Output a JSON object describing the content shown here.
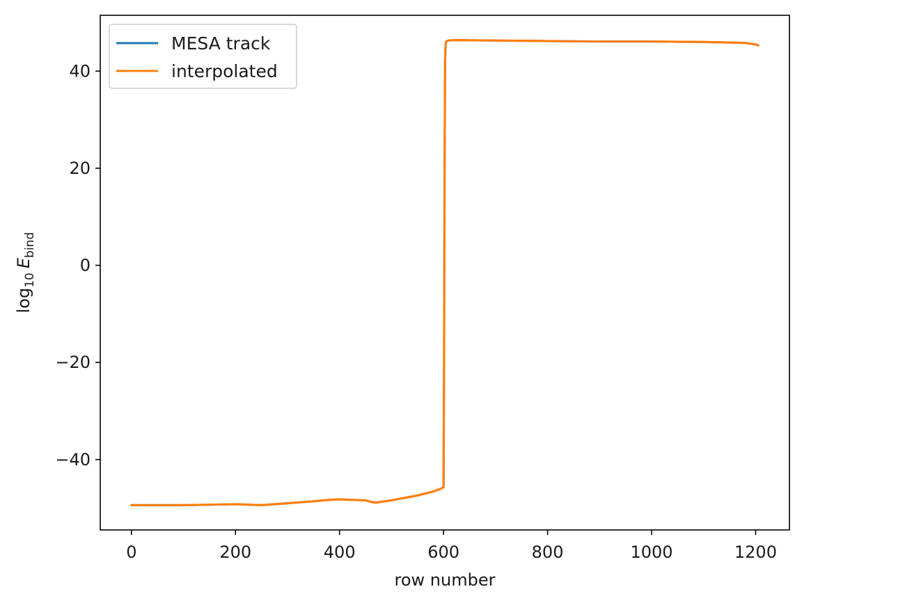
{
  "chart_data": {
    "type": "line",
    "title": "",
    "xlabel": "row number",
    "ylabel": {
      "prefix": "log",
      "prefix_sub": "10",
      "var": "E",
      "var_sub": "bind"
    },
    "xlim": [
      -60,
      1265
    ],
    "ylim": [
      -54.5,
      51.5
    ],
    "xticks": [
      0,
      200,
      400,
      600,
      800,
      1000,
      1200
    ],
    "yticks": [
      -40,
      -20,
      0,
      20,
      40
    ],
    "xtick_labels": [
      "0",
      "200",
      "400",
      "600",
      "800",
      "1000",
      "1200"
    ],
    "ytick_labels": [
      "−40",
      "−20",
      "0",
      "20",
      "40"
    ],
    "grid": false,
    "legend_position": "upper-left",
    "series": [
      {
        "name": "MESA track",
        "color": "#1f77b4",
        "x": [
          0,
          50,
          100,
          150,
          200,
          250,
          300,
          350,
          380,
          400,
          420,
          450,
          460,
          470,
          480,
          500,
          520,
          550,
          580,
          595,
          600,
          601,
          602,
          603,
          604,
          606,
          610,
          620,
          700,
          800,
          900,
          1000,
          1100,
          1150,
          1180,
          1200,
          1205
        ],
        "y": [
          -49.4,
          -49.4,
          -49.4,
          -49.3,
          -49.2,
          -49.4,
          -49.0,
          -48.6,
          -48.3,
          -48.2,
          -48.3,
          -48.4,
          -48.7,
          -48.9,
          -48.7,
          -48.4,
          -48.0,
          -47.4,
          -46.6,
          -46.0,
          -45.7,
          -20.0,
          20.0,
          42.0,
          45.8,
          46.2,
          46.3,
          46.4,
          46.3,
          46.2,
          46.1,
          46.1,
          46.0,
          45.9,
          45.8,
          45.5,
          45.3
        ]
      },
      {
        "name": "interpolated",
        "color": "#ff7f0e",
        "x": [
          0,
          50,
          100,
          150,
          200,
          250,
          300,
          350,
          380,
          400,
          420,
          450,
          460,
          470,
          480,
          500,
          520,
          550,
          580,
          595,
          600,
          601,
          602,
          603,
          604,
          606,
          610,
          620,
          700,
          800,
          900,
          1000,
          1100,
          1150,
          1180,
          1200,
          1205
        ],
        "y": [
          -49.4,
          -49.4,
          -49.4,
          -49.3,
          -49.2,
          -49.4,
          -49.0,
          -48.6,
          -48.3,
          -48.2,
          -48.3,
          -48.4,
          -48.7,
          -48.9,
          -48.7,
          -48.4,
          -48.0,
          -47.4,
          -46.6,
          -46.0,
          -45.7,
          -20.0,
          20.0,
          42.0,
          45.8,
          46.2,
          46.3,
          46.4,
          46.3,
          46.2,
          46.1,
          46.1,
          46.0,
          45.9,
          45.8,
          45.5,
          45.3
        ]
      }
    ]
  }
}
